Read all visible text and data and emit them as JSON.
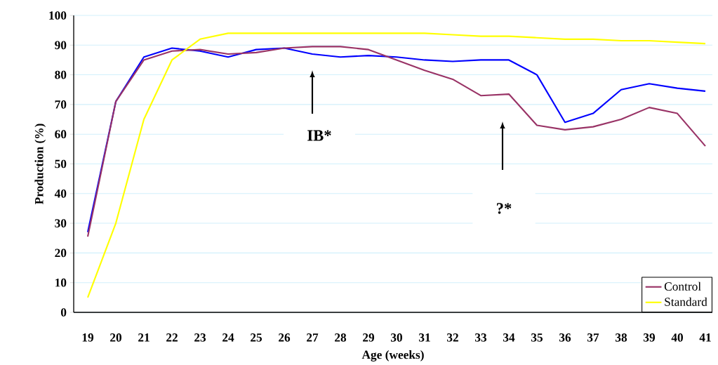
{
  "chart_data": {
    "type": "line",
    "xlabel": "Age (weeks)",
    "ylabel": "Production (%)",
    "categories": [
      "19",
      "20",
      "21",
      "22",
      "23",
      "24",
      "25",
      "26",
      "27",
      "28",
      "29",
      "30",
      "31",
      "32",
      "33",
      "34",
      "35",
      "36",
      "37",
      "38",
      "39",
      "40",
      "41"
    ],
    "series": [
      {
        "color": "#0000ff",
        "values": [
          27,
          71,
          86,
          89,
          88,
          86,
          88.5,
          89,
          87,
          86,
          86.5,
          86,
          85,
          84.5,
          85,
          85,
          80,
          64,
          67,
          75,
          77,
          75.5,
          74.5
        ]
      },
      {
        "name": "Control",
        "color": "#993366",
        "values": [
          25.5,
          71,
          85,
          88,
          88.5,
          87,
          87.5,
          89,
          89.5,
          89.5,
          88.5,
          85,
          81.5,
          78.5,
          73,
          73.5,
          63,
          61.5,
          62.5,
          65,
          69,
          67,
          56
        ]
      },
      {
        "name": "Standard",
        "color": "#ffff00",
        "values": [
          5,
          30,
          65,
          85,
          92,
          94,
          94,
          94,
          94,
          94,
          94,
          94,
          94,
          93.5,
          93,
          93,
          92.5,
          92,
          92,
          91.5,
          91.5,
          91,
          90.5
        ]
      }
    ],
    "ylim": [
      0,
      100
    ],
    "yticks": [
      0,
      10,
      20,
      30,
      40,
      50,
      60,
      70,
      80,
      90,
      100
    ],
    "grid": "y",
    "legend": "bottom right",
    "marker": "none",
    "line_style": "solid",
    "annotations": [
      "IB*",
      "?*"
    ]
  }
}
